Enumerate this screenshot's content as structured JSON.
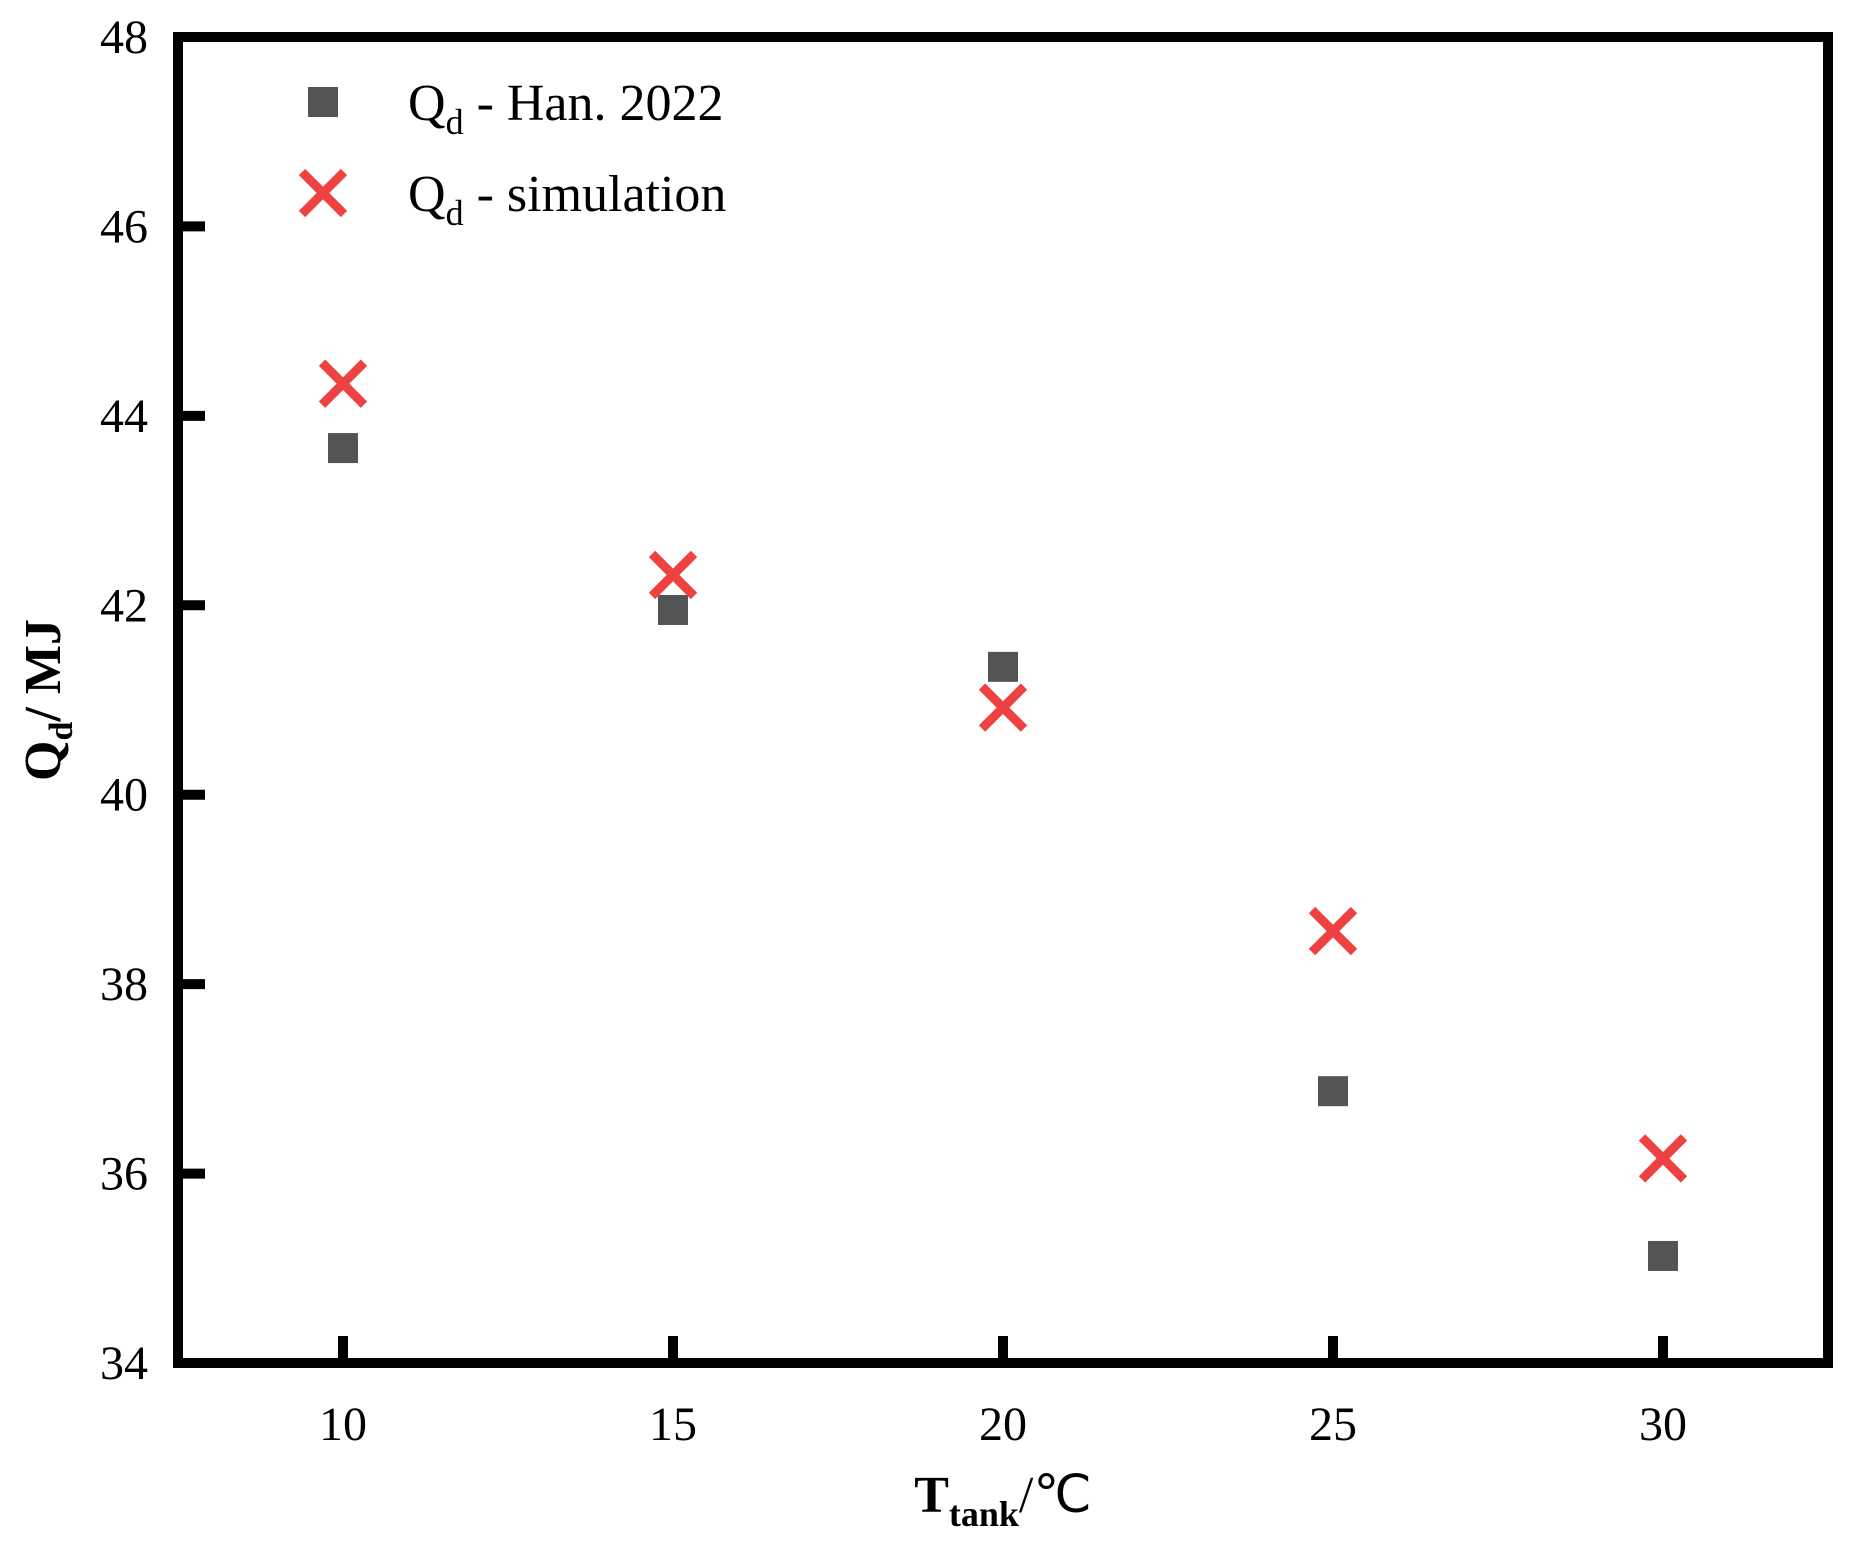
{
  "chart_data": {
    "type": "scatter",
    "title": "",
    "xlabel": "T_tank / ℃",
    "xlabel_parts": {
      "main": "T",
      "sub": "tank",
      "unit": "/℃"
    },
    "ylabel": "Q_d / MJ",
    "ylabel_parts": {
      "main": "Q",
      "sub": "d",
      "unit": "/ MJ"
    },
    "xlim": [
      7.5,
      32.5
    ],
    "ylim": [
      34,
      48
    ],
    "x_ticks": [
      10,
      15,
      20,
      25,
      30
    ],
    "y_ticks": [
      34,
      36,
      38,
      40,
      42,
      44,
      46,
      48
    ],
    "grid": false,
    "legend_position": "upper left",
    "x": [
      10,
      15,
      20,
      25,
      30
    ],
    "series": [
      {
        "name": "Q_d - Han. 2022",
        "label_main": "Q",
        "label_sub": "d",
        "label_rest": " - Han. 2022",
        "marker": "square",
        "color": "#545454",
        "values": [
          43.66,
          41.95,
          41.35,
          36.87,
          35.13
        ]
      },
      {
        "name": "Q_d - simulation",
        "label_main": "Q",
        "label_sub": "d",
        "label_rest": " - simulation",
        "marker": "x",
        "color": "#EE4142",
        "values": [
          44.34,
          42.32,
          40.92,
          38.56,
          36.16
        ]
      }
    ]
  }
}
